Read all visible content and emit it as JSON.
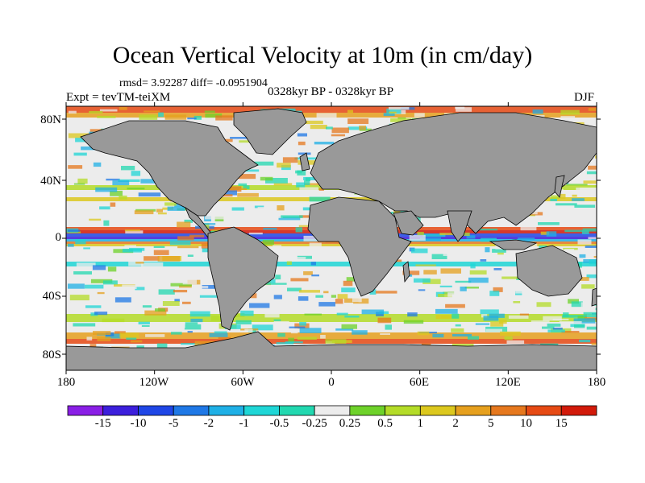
{
  "title": "Ocean Vertical Velocity at 10m (in cm/day)",
  "stats": "rmsd= 3.92287 diff= -0.0951904",
  "subtitle": "0328kyr BP - 0328kyr BP",
  "experiment": "Expt = tevTM-teiXM",
  "season": "DJF",
  "lat_labels": [
    "80N",
    "40N",
    "0",
    "40S",
    "80S"
  ],
  "lon_labels": [
    "180",
    "120W",
    "60W",
    "0",
    "60E",
    "120E",
    "180"
  ],
  "colorbar": {
    "labels": [
      "-15",
      "-10",
      "-5",
      "-2",
      "-1",
      "-0.5",
      "-0.25",
      "0.25",
      "0.5",
      "1",
      "2",
      "5",
      "10",
      "15"
    ],
    "colors": [
      "#8a1fe6",
      "#3c1fdc",
      "#1f46e6",
      "#1f78e6",
      "#1fb0e6",
      "#1fd6d6",
      "#22d8b0",
      "#ececec",
      "#6ed22a",
      "#b4dc28",
      "#dcc81e",
      "#e6a01e",
      "#e6781e",
      "#e64a14",
      "#d21a0a"
    ]
  },
  "colors": {
    "land": "#999999",
    "sea_ice_mask": "#999999",
    "coastline": "#000000",
    "ocean_neutral": "#ececec"
  }
}
